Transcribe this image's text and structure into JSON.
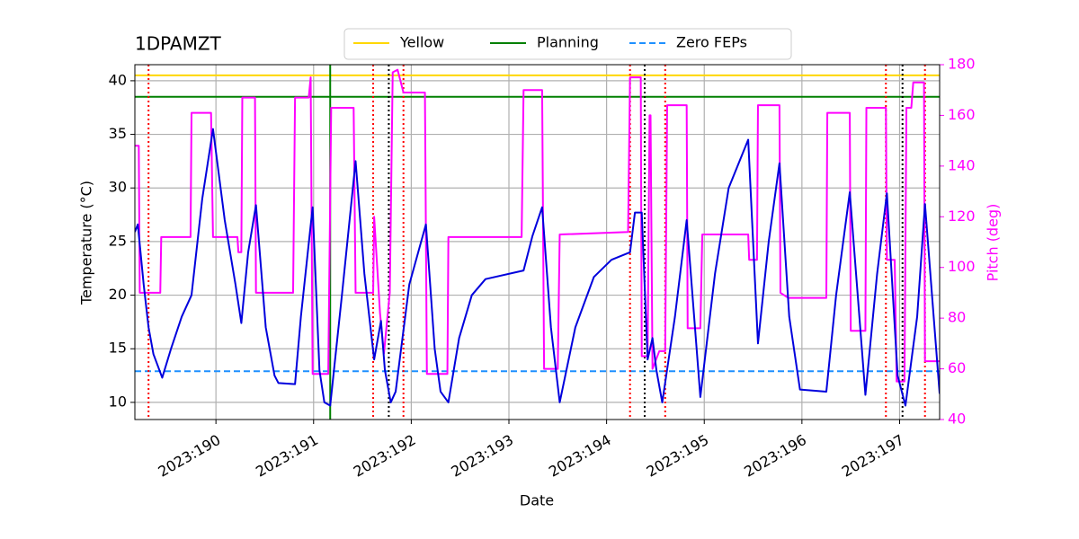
{
  "chart_data": {
    "type": "line",
    "title": "1DPAMZT",
    "xlabel": "Date",
    "ylabel": "Temperature (°C)",
    "y2label": "Pitch (deg)",
    "y2color": "#ff00ff",
    "grid": true,
    "legend": "upper center",
    "xlim": [
      189.17,
      197.41
    ],
    "ylim": [
      8.4,
      41.5
    ],
    "y2lim": [
      40,
      180
    ],
    "xticks": [
      {
        "value": 190,
        "label": "2023:190"
      },
      {
        "value": 191,
        "label": "2023:191"
      },
      {
        "value": 192,
        "label": "2023:192"
      },
      {
        "value": 193,
        "label": "2023:193"
      },
      {
        "value": 194,
        "label": "2023:194"
      },
      {
        "value": 195,
        "label": "2023:195"
      },
      {
        "value": 196,
        "label": "2023:196"
      },
      {
        "value": 197,
        "label": "2023:197"
      }
    ],
    "yticks": [
      10,
      15,
      20,
      25,
      30,
      35,
      40
    ],
    "y2ticks": [
      40,
      60,
      80,
      100,
      120,
      140,
      160,
      180
    ],
    "series": [
      {
        "color": "#0000dd",
        "x": [
          189.17,
          189.2,
          189.26,
          189.31,
          189.36,
          189.45,
          189.54,
          189.65,
          189.75,
          189.86,
          189.97,
          190.09,
          190.2,
          190.26,
          190.33,
          190.41,
          190.51,
          190.6,
          190.64,
          190.81,
          190.87,
          190.99,
          191.06,
          191.11,
          191.17,
          191.29,
          191.43,
          191.52,
          191.62,
          191.69,
          191.73,
          191.79,
          191.84,
          191.98,
          192.15,
          192.24,
          192.3,
          192.38,
          192.49,
          192.62,
          192.76,
          193.15,
          193.24,
          193.34,
          193.43,
          193.52,
          193.68,
          193.87,
          194.05,
          194.24,
          194.29,
          194.36,
          194.42,
          194.47,
          194.51,
          194.57,
          194.7,
          194.82,
          194.96,
          195.11,
          195.25,
          195.45,
          195.55,
          195.66,
          195.77,
          195.87,
          195.98,
          196.25,
          196.35,
          196.49,
          196.65,
          196.77,
          196.87,
          196.98,
          197.06,
          197.18,
          197.26,
          197.41
        ],
        "values": [
          25.9,
          26.6,
          21,
          17,
          14.5,
          12.3,
          15,
          18,
          20,
          29,
          35.5,
          27,
          21,
          17.4,
          24,
          28.4,
          17,
          12.5,
          11.8,
          11.7,
          18,
          28.2,
          13,
          10,
          9.7,
          20,
          32.5,
          22,
          14,
          17.6,
          13,
          10,
          11,
          21,
          26.6,
          15,
          11,
          10,
          16,
          20,
          21.5,
          22.3,
          25.5,
          28.2,
          17,
          10,
          17,
          21.7,
          23.3,
          24,
          27.7,
          27.7,
          14,
          16,
          13,
          10,
          18,
          27,
          10.5,
          22,
          30,
          34.5,
          15.5,
          25,
          32.3,
          18,
          11.2,
          11,
          20,
          29.6,
          10.7,
          22,
          29.5,
          12.5,
          9.7,
          18,
          28.5,
          10.8
        ]
      },
      {
        "color": "#ff00ff",
        "axis": "y2",
        "x": [
          189.17,
          189.21,
          189.22,
          189.43,
          189.44,
          189.74,
          189.75,
          189.95,
          189.97,
          190.22,
          190.23,
          190.26,
          190.27,
          190.4,
          190.41,
          190.79,
          190.81,
          190.95,
          190.97,
          190.99,
          191.15,
          191.18,
          191.41,
          191.43,
          191.61,
          191.62,
          191.68,
          191.72,
          191.78,
          191.81,
          191.86,
          191.92,
          192.14,
          192.16,
          192.37,
          192.38,
          193.13,
          193.15,
          193.34,
          193.36,
          193.5,
          193.52,
          194.22,
          194.24,
          194.35,
          194.36,
          194.42,
          194.44,
          194.45,
          194.47,
          194.54,
          194.6,
          194.62,
          194.82,
          194.83,
          194.96,
          194.98,
          195.45,
          195.46,
          195.54,
          195.55,
          195.77,
          195.78,
          195.86,
          196.25,
          196.26,
          196.49,
          196.5,
          196.65,
          196.66,
          196.86,
          196.87,
          196.95,
          196.97,
          197.05,
          197.07,
          197.12,
          197.14,
          197.25,
          197.26,
          197.41
        ],
        "values": [
          148,
          148,
          90,
          90,
          112,
          112,
          161,
          161,
          112,
          112,
          106,
          106,
          167,
          167,
          90,
          90,
          167,
          167,
          175,
          58,
          58,
          163,
          163,
          90,
          90,
          120,
          82,
          66,
          90,
          177,
          178,
          169,
          169,
          58,
          58,
          112,
          112,
          170,
          170,
          60,
          60,
          113,
          114,
          175,
          175,
          65,
          65,
          160,
          160,
          60,
          67,
          67,
          164,
          164,
          76,
          76,
          113,
          113,
          103,
          103,
          164,
          164,
          90,
          88,
          88,
          161,
          161,
          75,
          75,
          163,
          163,
          103,
          103,
          55,
          55,
          163,
          163,
          173,
          173,
          63,
          63
        ]
      }
    ],
    "hlines": [
      {
        "name": "Yellow",
        "color": "#ffd700",
        "style": "solid",
        "value": 40.5
      },
      {
        "name": "Planning",
        "color": "#008000",
        "style": "solid",
        "value": 38.5
      },
      {
        "name": "Zero FEPs",
        "color": "#1e90ff",
        "style": "dashed",
        "value": 12.9
      }
    ],
    "vlines": [
      {
        "color": "#ff0000",
        "style": "dotted",
        "x": [
          189.31,
          191.61,
          191.92,
          194.24,
          194.6,
          196.86,
          197.26
        ]
      },
      {
        "color": "#000000",
        "style": "dotted",
        "x": [
          191.77,
          194.39,
          197.03
        ]
      },
      {
        "color": "#008000",
        "style": "solid",
        "x": [
          191.17
        ]
      }
    ]
  }
}
